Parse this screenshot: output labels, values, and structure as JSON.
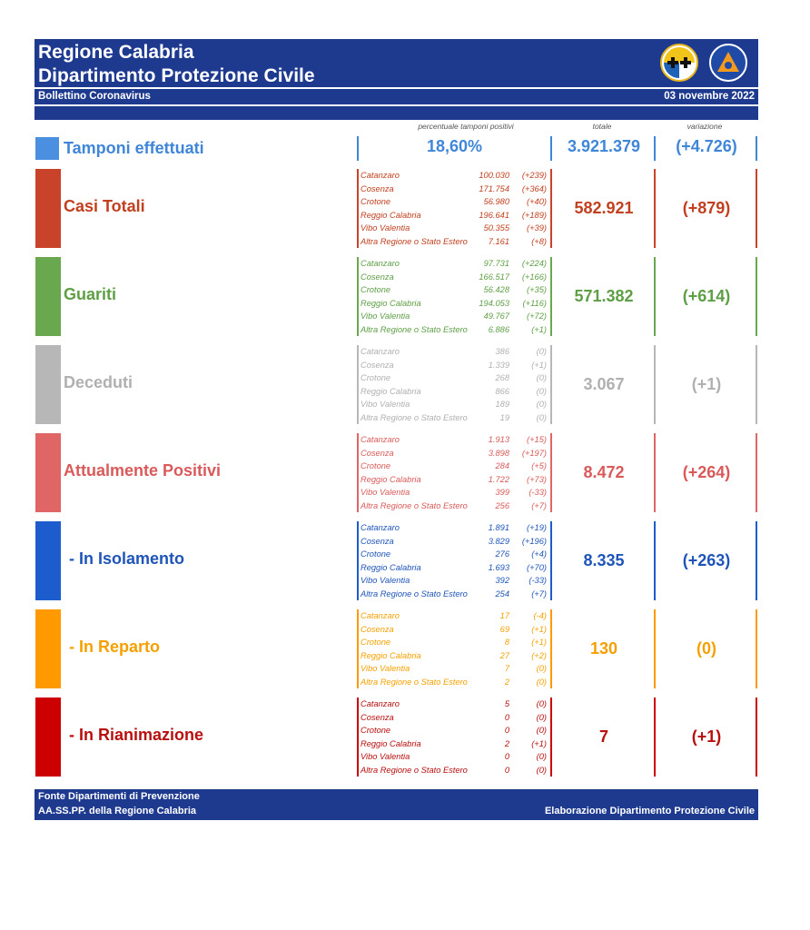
{
  "header": {
    "title_line1": "Regione Calabria",
    "title_line2": "Dipartimento Protezione Civile",
    "subtitle": "Bollettino Coronavirus",
    "date": "03 novembre 2022"
  },
  "column_headers": {
    "percent": "percentuale tamponi positivi",
    "total": "totale",
    "variation": "variazione"
  },
  "tamponi": {
    "label": "Tamponi effettuati",
    "percent": "18,60%",
    "total": "3.921.379",
    "variation": "(+4.726)",
    "color": "#3f86d8"
  },
  "categories": [
    {
      "label": "Casi Totali",
      "color": "#c8432a",
      "text_color": "#c1401f",
      "total": "582.921",
      "variation": "(+879)",
      "provinces": [
        {
          "name": "Catanzaro",
          "value": "100.030",
          "delta": "(+239)"
        },
        {
          "name": "Cosenza",
          "value": "171.754",
          "delta": "(+364)"
        },
        {
          "name": "Crotone",
          "value": "56.980",
          "delta": "(+40)"
        },
        {
          "name": "Reggio Calabria",
          "value": "196.641",
          "delta": "(+189)"
        },
        {
          "name": "Vibo Valentia",
          "value": "50.355",
          "delta": "(+39)"
        },
        {
          "name": "Altra Regione o Stato Estero",
          "value": "7.161",
          "delta": "(+8)"
        }
      ]
    },
    {
      "label": "Guariti",
      "color": "#6aa84f",
      "text_color": "#5e9e45",
      "total": "571.382",
      "variation": "(+614)",
      "provinces": [
        {
          "name": "Catanzaro",
          "value": "97.731",
          "delta": "(+224)"
        },
        {
          "name": "Cosenza",
          "value": "166.517",
          "delta": "(+166)"
        },
        {
          "name": "Crotone",
          "value": "56.428",
          "delta": "(+35)"
        },
        {
          "name": "Reggio Calabria",
          "value": "194.053",
          "delta": "(+116)"
        },
        {
          "name": "Vibo Valentia",
          "value": "49.767",
          "delta": "(+72)"
        },
        {
          "name": "Altra Regione o Stato Estero",
          "value": "6.886",
          "delta": "(+1)"
        }
      ]
    },
    {
      "label": "Deceduti",
      "color": "#b7b7b7",
      "text_color": "#b0b0b0",
      "total": "3.067",
      "variation": "(+1)",
      "provinces": [
        {
          "name": "Catanzaro",
          "value": "386",
          "delta": "(0)"
        },
        {
          "name": "Cosenza",
          "value": "1.339",
          "delta": "(+1)"
        },
        {
          "name": "Crotone",
          "value": "268",
          "delta": "(0)"
        },
        {
          "name": "Reggio Calabria",
          "value": "866",
          "delta": "(0)"
        },
        {
          "name": "Vibo Valentia",
          "value": "189",
          "delta": "(0)"
        },
        {
          "name": "Altra Regione o Stato Estero",
          "value": "19",
          "delta": "(0)"
        }
      ]
    },
    {
      "label": "Attualmente Positivi",
      "color": "#e06666",
      "text_color": "#d95a5a",
      "total": "8.472",
      "variation": "(+264)",
      "provinces": [
        {
          "name": "Catanzaro",
          "value": "1.913",
          "delta": "(+15)"
        },
        {
          "name": "Cosenza",
          "value": "3.898",
          "delta": "(+197)"
        },
        {
          "name": "Crotone",
          "value": "284",
          "delta": "(+5)"
        },
        {
          "name": "Reggio Calabria",
          "value": "1.722",
          "delta": "(+73)"
        },
        {
          "name": "Vibo Valentia",
          "value": "399",
          "delta": "(-33)"
        },
        {
          "name": "Altra Regione o Stato Estero",
          "value": "256",
          "delta": "(+7)"
        }
      ]
    },
    {
      "label": "- In Isolamento",
      "color": "#1c5ccc",
      "text_color": "#1f55b8",
      "total": "8.335",
      "variation": "(+263)",
      "provinces": [
        {
          "name": "Catanzaro",
          "value": "1.891",
          "delta": "(+19)"
        },
        {
          "name": "Cosenza",
          "value": "3.829",
          "delta": "(+196)"
        },
        {
          "name": "Crotone",
          "value": "276",
          "delta": "(+4)"
        },
        {
          "name": "Reggio Calabria",
          "value": "1.693",
          "delta": "(+70)"
        },
        {
          "name": "Vibo Valentia",
          "value": "392",
          "delta": "(-33)"
        },
        {
          "name": "Altra Regione o Stato Estero",
          "value": "254",
          "delta": "(+7)"
        }
      ]
    },
    {
      "label": "- In Reparto",
      "color": "#ff9900",
      "text_color": "#f5a000",
      "total": "130",
      "variation": "(0)",
      "provinces": [
        {
          "name": "Catanzaro",
          "value": "17",
          "delta": "(-4)"
        },
        {
          "name": "Cosenza",
          "value": "69",
          "delta": "(+1)"
        },
        {
          "name": "Crotone",
          "value": "8",
          "delta": "(+1)"
        },
        {
          "name": "Reggio Calabria",
          "value": "27",
          "delta": "(+2)"
        },
        {
          "name": "Vibo Valentia",
          "value": "7",
          "delta": "(0)"
        },
        {
          "name": "Altra Regione o Stato Estero",
          "value": "2",
          "delta": "(0)"
        }
      ]
    },
    {
      "label": "- In Rianimazione",
      "color": "#cc0000",
      "text_color": "#b80f0f",
      "total": "7",
      "variation": "(+1)",
      "provinces": [
        {
          "name": "Catanzaro",
          "value": "5",
          "delta": "(0)"
        },
        {
          "name": "Cosenza",
          "value": "0",
          "delta": "(0)"
        },
        {
          "name": "Crotone",
          "value": "0",
          "delta": "(0)"
        },
        {
          "name": "Reggio Calabria",
          "value": "2",
          "delta": "(+1)"
        },
        {
          "name": "Vibo Valentia",
          "value": "0",
          "delta": "(0)"
        },
        {
          "name": "Altra Regione o Stato Estero",
          "value": "0",
          "delta": "(0)"
        }
      ]
    }
  ],
  "footer": {
    "source_line1": "Fonte Dipartimenti di Prevenzione",
    "source_line2": "AA.SS.PP.  della Regione Calabria",
    "elaboration": "Elaborazione Dipartimento Protezione Civile"
  },
  "icons": [
    "regione-calabria-logo-icon",
    "protezione-civile-logo-icon"
  ]
}
